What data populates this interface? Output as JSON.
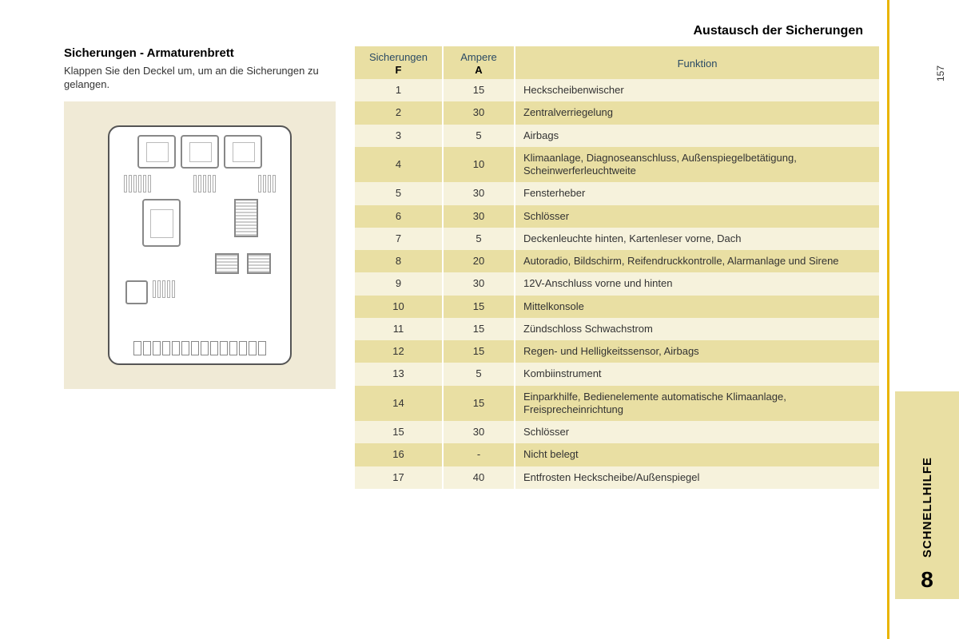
{
  "colors": {
    "accent_yellow": "#e9b400",
    "header_bg": "#e9dfa3",
    "row_odd": "#f6f2dc",
    "row_even": "#e9dfa3",
    "diagram_bg": "#f0ead6",
    "header_text": "#2a4a64"
  },
  "header": {
    "title": "Austausch der Sicherungen"
  },
  "sidebar": {
    "page_number": "157",
    "section_label": "SCHNELLHILFE",
    "chapter_number": "8"
  },
  "left": {
    "title": "Sicherungen - Armaturenbrett",
    "description": "Klappen Sie den Deckel um, um an die Sicherungen zu gelangen."
  },
  "table": {
    "columns": {
      "col1_label": "Sicherungen",
      "col1_sub": "F",
      "col2_label": "Ampere",
      "col2_sub": "A",
      "col3_label": "Funktion"
    },
    "rows": [
      {
        "f": "1",
        "a": "15",
        "func": "Heckscheibenwischer"
      },
      {
        "f": "2",
        "a": "30",
        "func": "Zentralverriegelung"
      },
      {
        "f": "3",
        "a": "5",
        "func": "Airbags"
      },
      {
        "f": "4",
        "a": "10",
        "func": "Klimaanlage, Diagnoseanschluss, Außenspiegelbetätigung, Scheinwerferleuchtweite"
      },
      {
        "f": "5",
        "a": "30",
        "func": "Fensterheber"
      },
      {
        "f": "6",
        "a": "30",
        "func": "Schlösser"
      },
      {
        "f": "7",
        "a": "5",
        "func": "Deckenleuchte hinten, Kartenleser vorne, Dach"
      },
      {
        "f": "8",
        "a": "20",
        "func": "Autoradio, Bildschirm, Reifendruckkontrolle, Alarmanlage und Sirene"
      },
      {
        "f": "9",
        "a": "30",
        "func": "12V-Anschluss vorne und hinten"
      },
      {
        "f": "10",
        "a": "15",
        "func": "Mittelkonsole"
      },
      {
        "f": "11",
        "a": "15",
        "func": "Zündschloss Schwachstrom"
      },
      {
        "f": "12",
        "a": "15",
        "func": "Regen- und Helligkeitssensor, Airbags"
      },
      {
        "f": "13",
        "a": "5",
        "func": "Kombiinstrument"
      },
      {
        "f": "14",
        "a": "15",
        "func": "Einparkhilfe, Bedienelemente automatische Klimaanlage, Freisprecheinrichtung"
      },
      {
        "f": "15",
        "a": "30",
        "func": "Schlösser"
      },
      {
        "f": "16",
        "a": "-",
        "func": "Nicht belegt"
      },
      {
        "f": "17",
        "a": "40",
        "func": "Entfrosten Heckscheibe/Außenspiegel"
      }
    ]
  }
}
